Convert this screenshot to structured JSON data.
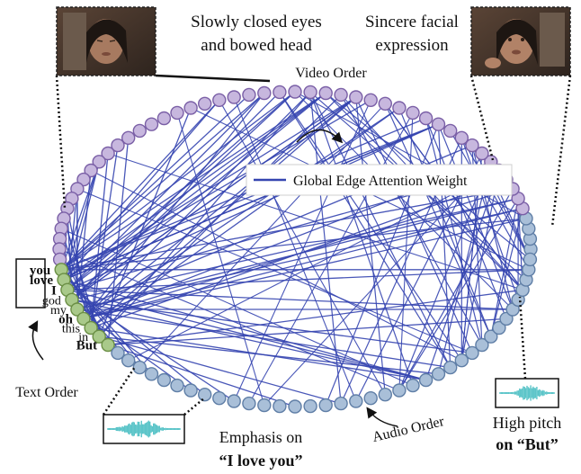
{
  "captions": {
    "closed_eyes": [
      "Slowly closed eyes",
      "and bowed head"
    ],
    "sincere": [
      "Sincere facial",
      "expression"
    ],
    "video_order": "Video Order",
    "text_order": "Text Order",
    "audio_order": "Audio Order",
    "emphasis": [
      "Emphasis on",
      "“I love you”"
    ],
    "high_pitch": [
      "High pitch",
      "on “But”"
    ]
  },
  "legend": {
    "label": "Global Edge Attention Weight"
  },
  "text_words": [
    {
      "text": "you",
      "bold": true
    },
    {
      "text": "love",
      "bold": true
    },
    {
      "text": "I",
      "bold": true
    },
    {
      "text": "god",
      "bold": false
    },
    {
      "text": "my",
      "bold": false
    },
    {
      "text": "oh",
      "bold": true
    },
    {
      "text": "this",
      "bold": false
    },
    {
      "text": "in",
      "bold": false
    },
    {
      "text": "But",
      "bold": true
    }
  ],
  "colors": {
    "video_node": "#c7b7de",
    "video_stroke": "#7a5fa6",
    "text_node": "#a9c98a",
    "text_stroke": "#6b8f45",
    "audio_node": "#a9bfd8",
    "audio_stroke": "#5f7ea6",
    "edge": "#3545b0",
    "waveform": "#5cc5c9"
  },
  "icons": [
    "face-thumbnail-closed-eyes",
    "face-thumbnail-sincere",
    "waveform-emphasis",
    "waveform-high-pitch"
  ]
}
